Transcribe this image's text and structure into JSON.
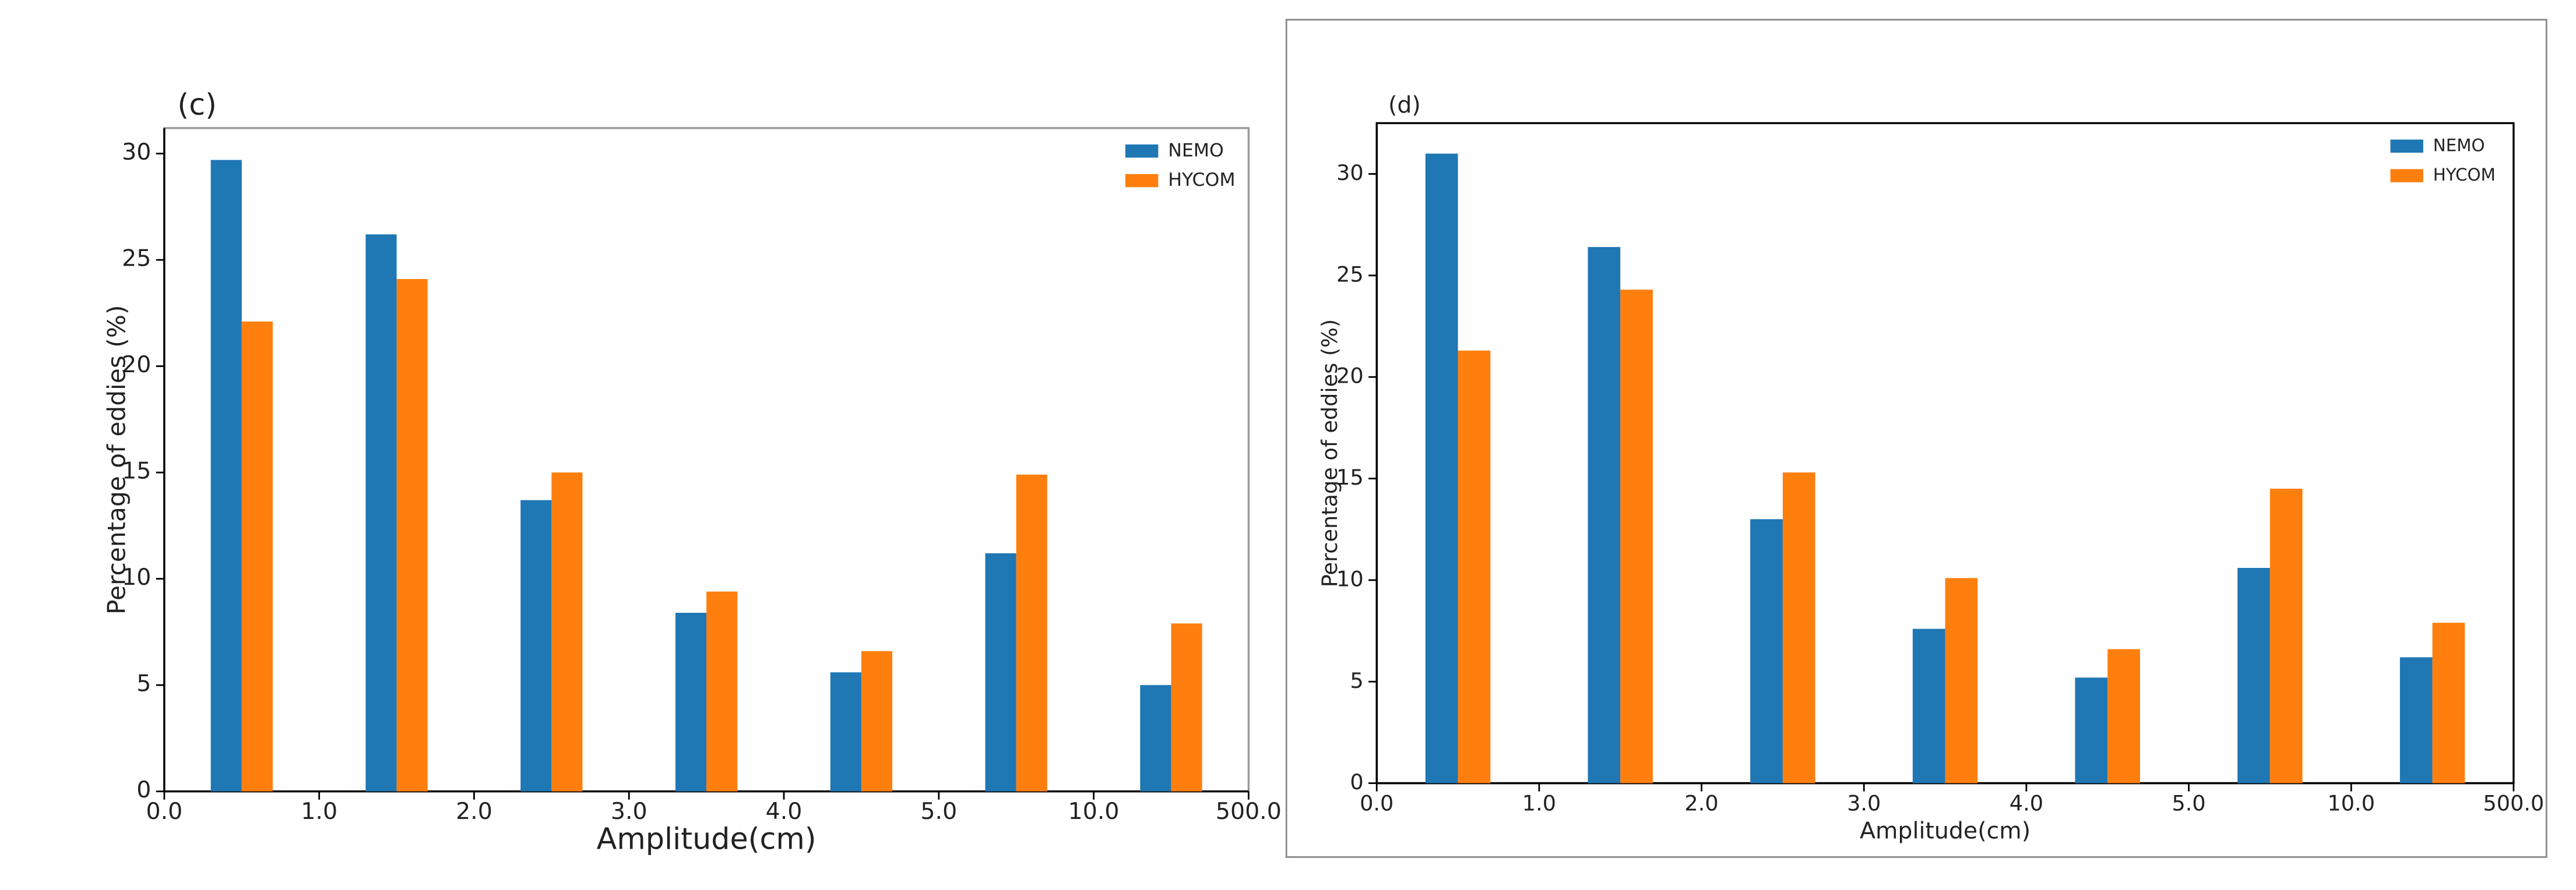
{
  "chart_data": [
    {
      "type": "bar",
      "title": "(c)",
      "x_label": "Amplitude(cm)",
      "y_label": "Percentage of eddies (%)",
      "bin_edges": [
        "0.0",
        "1.0",
        "2.0",
        "3.0",
        "4.0",
        "5.0",
        "10.0",
        "500.0"
      ],
      "series": [
        {
          "name": "NEMO",
          "color": "#1f77b4",
          "values": [
            29.7,
            26.2,
            13.7,
            8.4,
            5.6,
            11.2,
            5.0
          ]
        },
        {
          "name": "HYCOM",
          "color": "#ff7f0e",
          "values": [
            22.1,
            24.1,
            15.0,
            9.4,
            6.6,
            14.9,
            7.9
          ]
        }
      ],
      "ylim": [
        0,
        31.2
      ],
      "yticks": [
        0,
        5,
        10,
        15,
        20,
        25,
        30
      ],
      "legend": "upper right"
    },
    {
      "type": "bar",
      "title": "(d)",
      "x_label": "Amplitude(cm)",
      "y_label": "Percentage of eddies (%)",
      "bin_edges": [
        "0.0",
        "1.0",
        "2.0",
        "3.0",
        "4.0",
        "5.0",
        "10.0",
        "500.0"
      ],
      "series": [
        {
          "name": "NEMO",
          "color": "#1f77b4",
          "values": [
            31.0,
            26.4,
            13.0,
            7.6,
            5.2,
            10.6,
            6.2
          ]
        },
        {
          "name": "HYCOM",
          "color": "#ff7f0e",
          "values": [
            21.3,
            24.3,
            15.3,
            10.1,
            6.6,
            14.5,
            7.9
          ]
        }
      ],
      "ylim": [
        0,
        32.5
      ],
      "yticks": [
        0,
        5,
        10,
        15,
        20,
        25,
        30
      ],
      "legend": "upper right"
    }
  ]
}
